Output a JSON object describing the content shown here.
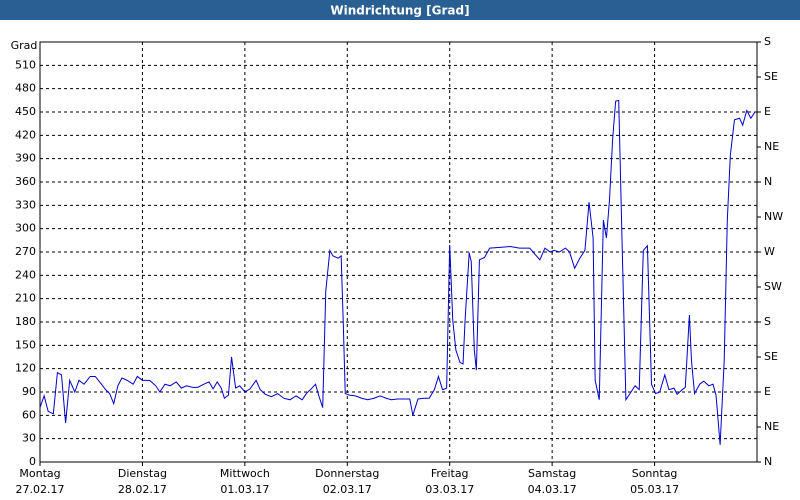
{
  "chart_data": {
    "type": "line",
    "title": "Windrichtung [Grad]",
    "y_label": "Grad",
    "xlim": [
      0,
      7
    ],
    "xticks": [
      {
        "value": 0,
        "label": "Montag"
      },
      {
        "value": 1,
        "label": "Dienstag"
      },
      {
        "value": 2,
        "label": "Mittwoch"
      },
      {
        "value": 3,
        "label": "Donnerstag"
      },
      {
        "value": 4,
        "label": "Freitag"
      },
      {
        "value": 5,
        "label": "Samstag"
      },
      {
        "value": 6,
        "label": "Sonntag"
      }
    ],
    "xtick_dates": [
      "27.02.17",
      "28.02.17",
      "01.03.17",
      "02.03.17",
      "03.03.17",
      "04.03.17",
      "05.03.17"
    ],
    "ylim": [
      0,
      540
    ],
    "yticks": [
      0,
      30,
      60,
      90,
      120,
      150,
      180,
      210,
      240,
      270,
      300,
      330,
      360,
      390,
      420,
      450,
      480,
      510
    ],
    "y2lim": [
      0,
      540
    ],
    "y2ticks": [
      {
        "value": 0,
        "label": "N"
      },
      {
        "value": 45,
        "label": "NE"
      },
      {
        "value": 90,
        "label": "E"
      },
      {
        "value": 135,
        "label": "SE"
      },
      {
        "value": 180,
        "label": "S"
      },
      {
        "value": 225,
        "label": "SW"
      },
      {
        "value": 270,
        "label": "W"
      },
      {
        "value": 315,
        "label": "NW"
      },
      {
        "value": 360,
        "label": "N"
      },
      {
        "value": 405,
        "label": "NE"
      },
      {
        "value": 450,
        "label": "E"
      },
      {
        "value": 495,
        "label": "SE"
      },
      {
        "value": 540,
        "label": "S"
      }
    ],
    "grid": true,
    "x": [
      0,
      0.04,
      0.08,
      0.13,
      0.17,
      0.21,
      0.25,
      0.29,
      0.34,
      0.38,
      0.43,
      0.49,
      0.54,
      0.6,
      0.64,
      0.68,
      0.72,
      0.76,
      0.8,
      0.85,
      0.91,
      0.95,
      1.0,
      1.07,
      1.13,
      1.17,
      1.22,
      1.27,
      1.33,
      1.38,
      1.43,
      1.49,
      1.54,
      1.6,
      1.65,
      1.69,
      1.73,
      1.77,
      1.8,
      1.84,
      1.87,
      1.91,
      1.95,
      2.0,
      2.05,
      2.11,
      2.15,
      2.2,
      2.26,
      2.32,
      2.38,
      2.44,
      2.5,
      2.56,
      2.6,
      2.64,
      2.69,
      2.72,
      2.76,
      2.79,
      2.83,
      2.86,
      2.91,
      2.94,
      2.96,
      2.98,
      3.02,
      3.08,
      3.14,
      3.2,
      3.26,
      3.32,
      3.38,
      3.43,
      3.49,
      3.55,
      3.61,
      3.64,
      3.69,
      3.75,
      3.8,
      3.85,
      3.89,
      3.93,
      3.97,
      4.0,
      4.03,
      4.06,
      4.1,
      4.13,
      4.15,
      4.19,
      4.21,
      4.24,
      4.26,
      4.29,
      4.34,
      4.39,
      4.49,
      4.59,
      4.68,
      4.78,
      4.88,
      4.93,
      4.98,
      5.02,
      5.07,
      5.13,
      5.17,
      5.22,
      5.27,
      5.32,
      5.36,
      5.4,
      5.42,
      5.46,
      5.5,
      5.53,
      5.56,
      5.59,
      5.62,
      5.65,
      5.68,
      5.72,
      5.77,
      5.81,
      5.85,
      5.89,
      5.93,
      5.97,
      6.01,
      6.05,
      6.1,
      6.14,
      6.19,
      6.22,
      6.27,
      6.3,
      6.34,
      6.36,
      6.39,
      6.44,
      6.48,
      6.53,
      6.57,
      6.6,
      6.64,
      6.68,
      6.71,
      6.74,
      6.78,
      6.83,
      6.86,
      6.9,
      6.94,
      6.98
    ],
    "series": [
      {
        "name": "Windrichtung",
        "color": "#0000cc",
        "values": [
          70,
          85,
          65,
          62,
          115,
          112,
          50,
          105,
          90,
          105,
          100,
          110,
          110,
          100,
          93,
          88,
          75,
          98,
          108,
          105,
          100,
          110,
          105,
          105,
          98,
          90,
          100,
          98,
          103,
          95,
          98,
          96,
          96,
          100,
          103,
          94,
          103,
          95,
          82,
          86,
          135,
          95,
          98,
          90,
          94,
          105,
          93,
          87,
          84,
          88,
          82,
          80,
          85,
          80,
          88,
          93,
          100,
          86,
          70,
          220,
          272,
          265,
          262,
          265,
          182,
          88,
          86,
          85,
          82,
          80,
          82,
          85,
          82,
          80,
          81,
          81,
          81,
          60,
          81,
          82,
          82,
          93,
          110,
          93,
          95,
          279,
          182,
          144,
          128,
          126,
          182,
          269,
          258,
          144,
          118,
          260,
          263,
          275,
          276,
          277,
          275,
          275,
          260,
          275,
          270,
          272,
          270,
          275,
          270,
          249,
          262,
          272,
          334,
          288,
          105,
          80,
          311,
          288,
          337,
          414,
          464,
          465,
          298,
          80,
          90,
          98,
          93,
          272,
          278,
          100,
          88,
          90,
          112,
          93,
          95,
          87,
          93,
          96,
          189,
          131,
          88,
          100,
          104,
          98,
          100,
          86,
          22,
          131,
          311,
          395,
          440,
          442,
          433,
          452,
          442,
          450
        ]
      }
    ]
  }
}
